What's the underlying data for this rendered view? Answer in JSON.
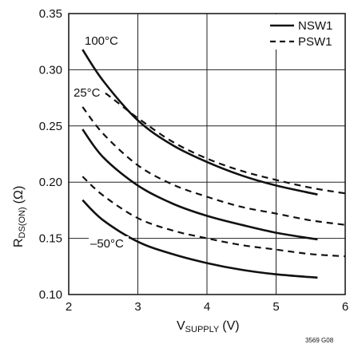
{
  "chart_data": {
    "type": "line",
    "xlabel": {
      "main": "V",
      "sub": "SUPPLY",
      "unit": "(V)"
    },
    "ylabel": {
      "main": "R",
      "sub": "DS(ON)",
      "unit": "(Ω)"
    },
    "xlim": [
      2,
      6
    ],
    "ylim": [
      0.1,
      0.35
    ],
    "x_ticks": [
      2,
      3,
      4,
      5,
      6
    ],
    "x_tick_labels": [
      "2",
      "3",
      "4",
      "5",
      "6"
    ],
    "y_ticks": [
      0.1,
      0.15,
      0.2,
      0.25,
      0.3,
      0.35
    ],
    "y_tick_labels": [
      "0.10",
      "0.15",
      "0.20",
      "0.25",
      "0.30",
      "0.35"
    ],
    "grid": true,
    "legend_position": "top-right",
    "legend": [
      {
        "label": "NSW1",
        "style": "solid"
      },
      {
        "label": "PSW1",
        "style": "dashed"
      }
    ],
    "series": [
      {
        "group": "NSW1",
        "temp": "100°C",
        "style": "solid",
        "x": [
          2.2,
          2.5,
          3.0,
          3.5,
          4.0,
          4.5,
          5.0,
          5.6
        ],
        "y": [
          0.318,
          0.29,
          0.255,
          0.233,
          0.218,
          0.206,
          0.197,
          0.189
        ]
      },
      {
        "group": "PSW1",
        "temp": "100°C",
        "style": "dashed",
        "x": [
          2.4,
          2.6,
          3.0,
          3.5,
          4.0,
          4.5,
          5.0,
          5.5,
          6.0
        ],
        "y": [
          0.285,
          0.276,
          0.257,
          0.236,
          0.221,
          0.21,
          0.202,
          0.195,
          0.19
        ]
      },
      {
        "group": "PSW1",
        "temp": "25°C",
        "style": "dashed",
        "x": [
          2.2,
          2.5,
          3.0,
          3.5,
          4.0,
          4.5,
          5.0,
          5.5,
          6.0
        ],
        "y": [
          0.267,
          0.243,
          0.215,
          0.198,
          0.187,
          0.178,
          0.172,
          0.166,
          0.162
        ]
      },
      {
        "group": "NSW1",
        "temp": "25°C",
        "style": "solid",
        "x": [
          2.2,
          2.5,
          3.0,
          3.5,
          4.0,
          4.5,
          5.0,
          5.6
        ],
        "y": [
          0.247,
          0.222,
          0.197,
          0.181,
          0.17,
          0.162,
          0.155,
          0.149
        ]
      },
      {
        "group": "PSW1",
        "temp": "-50°C",
        "style": "dashed",
        "x": [
          2.2,
          2.5,
          3.0,
          3.5,
          4.0,
          4.5,
          5.0,
          5.5,
          6.0
        ],
        "y": [
          0.205,
          0.188,
          0.168,
          0.157,
          0.15,
          0.144,
          0.14,
          0.136,
          0.134
        ]
      },
      {
        "group": "NSW1",
        "temp": "-50°C",
        "style": "solid",
        "x": [
          2.2,
          2.5,
          3.0,
          3.5,
          4.0,
          4.5,
          5.0,
          5.6
        ],
        "y": [
          0.184,
          0.166,
          0.147,
          0.136,
          0.128,
          0.122,
          0.118,
          0.115
        ]
      }
    ],
    "annotations": [
      {
        "text": "100°C"
      },
      {
        "text": "25°C"
      },
      {
        "text": "–50°C"
      }
    ],
    "figure_id": "3569 G08"
  }
}
